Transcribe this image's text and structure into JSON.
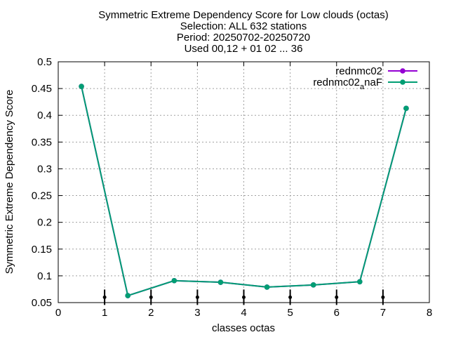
{
  "chart_data": {
    "type": "line",
    "title_lines": [
      "Symmetric Extreme Dependency Score  for Low clouds (octas)",
      "Selection: ALL    632 stations",
      "Period: 20250702-20250720",
      "Used 00,12 + 01 02 ... 36"
    ],
    "xlabel": "classes octas",
    "ylabel": "Symmetric Extreme Dependency Score",
    "xlim": [
      0,
      8
    ],
    "ylim": [
      0.05,
      0.5
    ],
    "xticks": [
      0,
      1,
      2,
      3,
      4,
      5,
      6,
      7,
      8
    ],
    "yticks": [
      0.05,
      0.1,
      0.15,
      0.2,
      0.25,
      0.3,
      0.35,
      0.4,
      0.45,
      0.5
    ],
    "ytick_labels": [
      "0.05",
      "0.1",
      "0.15",
      "0.2",
      "0.25",
      "0.3",
      "0.35",
      "0.4",
      "0.45",
      "0.5"
    ],
    "grid": true,
    "legend_position": "top-right",
    "x": [
      0.5,
      1.5,
      2.5,
      3.5,
      4.5,
      5.5,
      6.5,
      7.5
    ],
    "series": [
      {
        "name": "rednmc02",
        "color": "#9400d3",
        "values": [
          0.454,
          0.063,
          0.091,
          0.088,
          0.079,
          0.083,
          0.089,
          0.413
        ]
      },
      {
        "name_base": "rednmc02",
        "name_sub": "a",
        "name_tail": "naF",
        "color": "#009e73",
        "values": [
          0.454,
          0.063,
          0.091,
          0.088,
          0.079,
          0.083,
          0.089,
          0.413
        ]
      }
    ],
    "error_bar_x": [
      1,
      2,
      3,
      4,
      5,
      6,
      7
    ],
    "error_bar_y": 0.06,
    "error_bar_color": "#000000"
  }
}
